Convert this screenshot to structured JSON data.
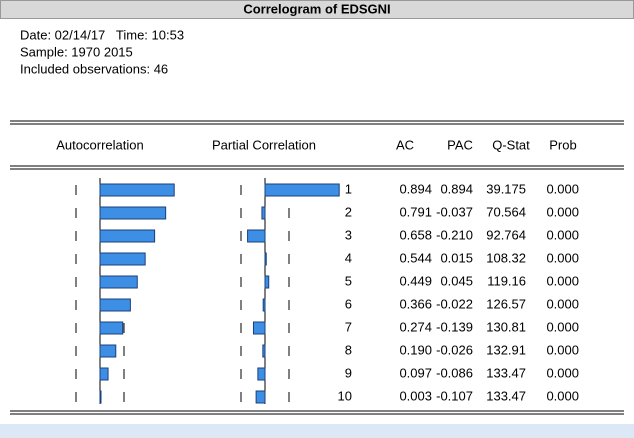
{
  "header": {
    "title": "Correlogram of EDSGNI"
  },
  "info": [
    "Date: 02/14/17   Time: 10:53",
    "Sample: 1970 2015",
    "Included observations: 46"
  ],
  "table": {
    "columns": [
      "Autocorrelation",
      "Partial Correlation",
      "AC",
      "PAC",
      "Q-Stat",
      "Prob"
    ],
    "rows": [
      {
        "lag": 1,
        "ac": "0.894",
        "pac": "0.894",
        "q": "39.175",
        "prob": "0.000"
      },
      {
        "lag": 2,
        "ac": "0.791",
        "pac": "-0.037",
        "q": "70.564",
        "prob": "0.000"
      },
      {
        "lag": 3,
        "ac": "0.658",
        "pac": "-0.210",
        "q": "92.764",
        "prob": "0.000"
      },
      {
        "lag": 4,
        "ac": "0.544",
        "pac": "0.015",
        "q": "108.32",
        "prob": "0.000"
      },
      {
        "lag": 5,
        "ac": "0.449",
        "pac": "0.045",
        "q": "119.16",
        "prob": "0.000"
      },
      {
        "lag": 6,
        "ac": "0.366",
        "pac": "-0.022",
        "q": "126.57",
        "prob": "0.000"
      },
      {
        "lag": 7,
        "ac": "0.274",
        "pac": "-0.139",
        "q": "130.81",
        "prob": "0.000"
      },
      {
        "lag": 8,
        "ac": "0.190",
        "pac": "-0.026",
        "q": "132.91",
        "prob": "0.000"
      },
      {
        "lag": 9,
        "ac": "0.097",
        "pac": "-0.086",
        "q": "133.47",
        "prob": "0.000"
      },
      {
        "lag": 10,
        "ac": "0.003",
        "pac": "-0.107",
        "q": "133.47",
        "prob": "0.000"
      }
    ]
  }
}
